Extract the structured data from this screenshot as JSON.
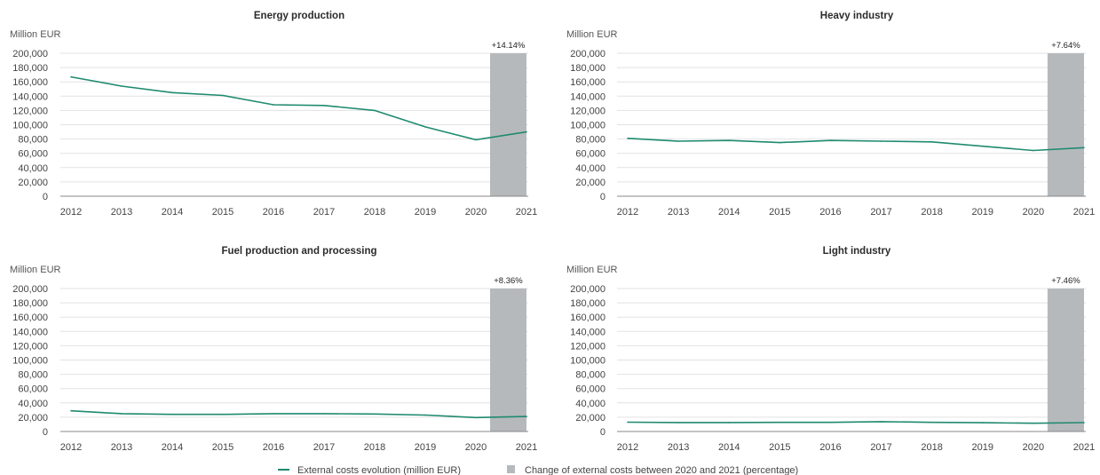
{
  "legend": {
    "line_label": "External costs evolution (million EUR)",
    "bar_label": "Change of external costs between 2020 and 2021 (percentage)"
  },
  "colors": {
    "line": "#1f8a70",
    "bar": "#b6b9bc"
  },
  "chart_data": [
    {
      "type": "line",
      "title": "Energy production",
      "ylabel": "Million EUR",
      "x": [
        "2012",
        "2013",
        "2014",
        "2015",
        "2016",
        "2017",
        "2018",
        "2019",
        "2020",
        "2021"
      ],
      "ylim": [
        0,
        200000
      ],
      "yticks": [
        "0",
        "20,000",
        "40,000",
        "60,000",
        "80,000",
        "100,000",
        "120,000",
        "140,000",
        "160,000",
        "180,000",
        "200,000"
      ],
      "series": [
        {
          "values": [
            167000,
            154000,
            145000,
            141000,
            128000,
            127000,
            120000,
            97000,
            79000,
            90000
          ]
        }
      ],
      "highlight": {
        "from": "2020",
        "to": "2021",
        "label": "+14.14%"
      }
    },
    {
      "type": "line",
      "title": "Heavy industry",
      "ylabel": "Million EUR",
      "x": [
        "2012",
        "2013",
        "2014",
        "2015",
        "2016",
        "2017",
        "2018",
        "2019",
        "2020",
        "2021"
      ],
      "ylim": [
        0,
        200000
      ],
      "yticks": [
        "0",
        "20,000",
        "40,000",
        "60,000",
        "80,000",
        "100,000",
        "120,000",
        "140,000",
        "160,000",
        "180,000",
        "200,000"
      ],
      "series": [
        {
          "values": [
            81000,
            77000,
            78000,
            75000,
            78000,
            77000,
            76000,
            70000,
            64000,
            68000
          ]
        }
      ],
      "highlight": {
        "from": "2020",
        "to": "2021",
        "label": "+7.64%"
      }
    },
    {
      "type": "line",
      "title": "Fuel production and processing",
      "ylabel": "Million EUR",
      "x": [
        "2012",
        "2013",
        "2014",
        "2015",
        "2016",
        "2017",
        "2018",
        "2019",
        "2020",
        "2021"
      ],
      "ylim": [
        0,
        200000
      ],
      "yticks": [
        "0",
        "20,000",
        "40,000",
        "60,000",
        "80,000",
        "100,000",
        "120,000",
        "140,000",
        "160,000",
        "180,000",
        "200,000"
      ],
      "series": [
        {
          "values": [
            29000,
            25000,
            24000,
            24000,
            25000,
            25000,
            24500,
            23000,
            19500,
            21000
          ]
        }
      ],
      "highlight": {
        "from": "2020",
        "to": "2021",
        "label": "+8.36%"
      }
    },
    {
      "type": "line",
      "title": "Light industry",
      "ylabel": "Million EUR",
      "x": [
        "2012",
        "2013",
        "2014",
        "2015",
        "2016",
        "2017",
        "2018",
        "2019",
        "2020",
        "2021"
      ],
      "ylim": [
        0,
        200000
      ],
      "yticks": [
        "0",
        "20,000",
        "40,000",
        "60,000",
        "80,000",
        "100,000",
        "120,000",
        "140,000",
        "160,000",
        "180,000",
        "200,000"
      ],
      "series": [
        {
          "values": [
            13000,
            12500,
            12500,
            12800,
            12800,
            13800,
            12800,
            12300,
            11500,
            12400
          ]
        }
      ],
      "highlight": {
        "from": "2020",
        "to": "2021",
        "label": "+7.46%"
      }
    }
  ]
}
